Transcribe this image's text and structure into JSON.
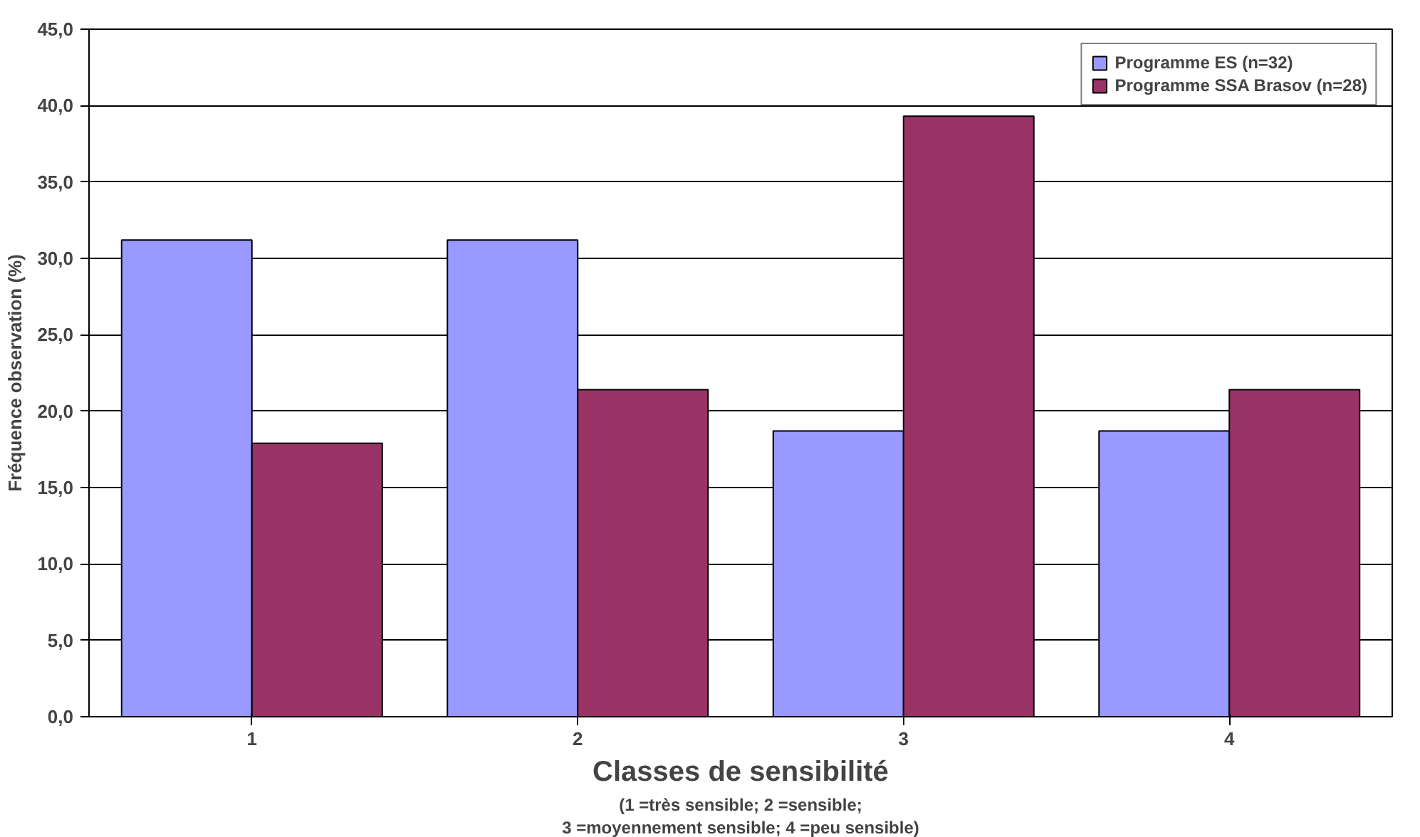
{
  "chart_data": {
    "type": "bar",
    "categories": [
      "1",
      "2",
      "3",
      "4"
    ],
    "xlabel": "Classes de sensibilité",
    "ylabel": "Fréquence observation (%)",
    "annotations": [
      "(1 =très sensible; 2 =sensible;",
      "3 =moyennement sensible; 4 =peu sensible)"
    ],
    "series": [
      {
        "name": "Programme ES (n=32)",
        "color": "#9999ff",
        "values": [
          31.2,
          31.2,
          18.7,
          18.7
        ]
      },
      {
        "name": "Programme SSA Brasov (n=28)",
        "color": "#993366",
        "values": [
          17.9,
          21.4,
          39.3,
          21.4
        ]
      }
    ],
    "ylim": [
      0,
      45
    ],
    "yticks": [
      {
        "value": 0,
        "label": "0,0"
      },
      {
        "value": 5,
        "label": "5,0"
      },
      {
        "value": 10,
        "label": "10,0"
      },
      {
        "value": 15,
        "label": "15,0"
      },
      {
        "value": 20,
        "label": "20,0"
      },
      {
        "value": 25,
        "label": "25,0"
      },
      {
        "value": 30,
        "label": "30,0"
      },
      {
        "value": 35,
        "label": "35,0"
      },
      {
        "value": 40,
        "label": "40,0"
      },
      {
        "value": 45,
        "label": "45,0"
      }
    ],
    "grid": "y",
    "legend": "top right"
  }
}
